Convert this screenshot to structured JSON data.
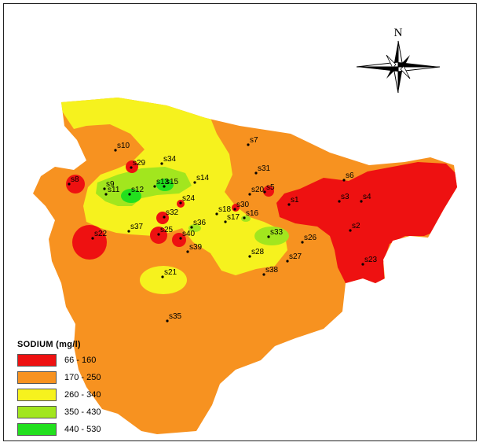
{
  "legend": {
    "title": "SODIUM  (mg/l)",
    "classes": [
      {
        "label": "66 - 160",
        "color": "#ee1111"
      },
      {
        "label": "170 - 250",
        "color": "#f79220"
      },
      {
        "label": "260 - 340",
        "color": "#f6f21e"
      },
      {
        "label": "350 - 430",
        "color": "#a2e61e"
      },
      {
        "label": "440 - 530",
        "color": "#22e01e"
      }
    ]
  },
  "north_arrow": {
    "label": "N",
    "icon": "north-arrow-icon"
  },
  "stations": [
    {
      "id": "s1"
    },
    {
      "id": "s3"
    },
    {
      "id": "s4"
    },
    {
      "id": "s2"
    },
    {
      "id": "s5"
    },
    {
      "id": "s6"
    },
    {
      "id": "s7"
    },
    {
      "id": "s8"
    },
    {
      "id": "s9"
    },
    {
      "id": "s10"
    },
    {
      "id": "s11"
    },
    {
      "id": "s12"
    },
    {
      "id": "s13"
    },
    {
      "id": "s14"
    },
    {
      "id": "s15"
    },
    {
      "id": "s16"
    },
    {
      "id": "s17"
    },
    {
      "id": "s18"
    },
    {
      "id": "s20"
    },
    {
      "id": "s21"
    },
    {
      "id": "s22"
    },
    {
      "id": "s23"
    },
    {
      "id": "s24"
    },
    {
      "id": "s25"
    },
    {
      "id": "s26"
    },
    {
      "id": "s27"
    },
    {
      "id": "s28"
    },
    {
      "id": "s29"
    },
    {
      "id": "s30"
    },
    {
      "id": "s31"
    },
    {
      "id": "s32"
    },
    {
      "id": "s33"
    },
    {
      "id": "s34"
    },
    {
      "id": "s35"
    },
    {
      "id": "s36"
    },
    {
      "id": "s37"
    },
    {
      "id": "s38"
    },
    {
      "id": "s39"
    },
    {
      "id": "s40"
    }
  ]
}
